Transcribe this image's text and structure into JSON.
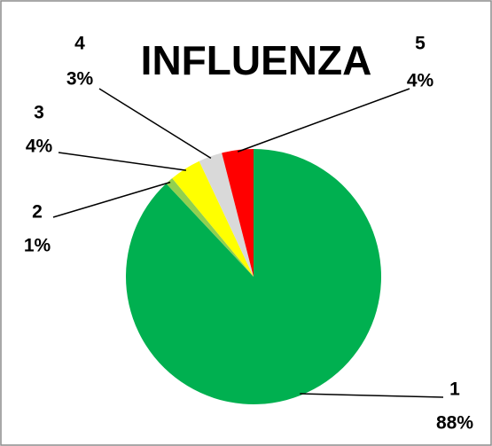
{
  "chart_data": {
    "type": "pie",
    "title": "INFLUENZA",
    "categories": [
      "1",
      "2",
      "3",
      "4",
      "5"
    ],
    "values": [
      88,
      1,
      4,
      3,
      4
    ],
    "value_labels": [
      "88%",
      "1%",
      "4%",
      "3%",
      "4%"
    ],
    "colors": [
      "#00b050",
      "#92d050",
      "#ffff00",
      "#d9d9d9",
      "#ff0000"
    ]
  }
}
